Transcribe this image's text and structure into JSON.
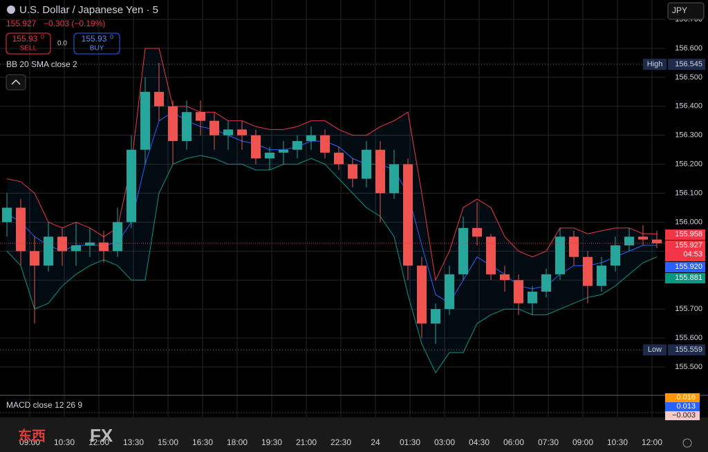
{
  "chart_data": {
    "type": "candlestick",
    "title": "U.S. Dollar / Japanese Yen · 5",
    "last_price": "155.927",
    "change": "−0.303 (−0.19%)",
    "sell": {
      "price": "155.93",
      "sup": "0",
      "label": "SELL"
    },
    "spread": "0.0",
    "buy": {
      "price": "155.93",
      "sup": "0",
      "label": "BUY"
    },
    "indicator": "BB 20 SMA close 2",
    "currency": "JPY",
    "macd_title": "MACD close 12 26 9",
    "macd_labels": [
      {
        "label": "0.016",
        "color": "#ff9800"
      },
      {
        "label": "0.013",
        "color": "#2962ff"
      },
      {
        "label": "−0.003",
        "color": "#f7c9c9"
      }
    ],
    "countdown": "04:53",
    "watermark": [
      "东西",
      "FX"
    ],
    "open": [
      156.0,
      156.05,
      155.9,
      155.85,
      155.95,
      155.9,
      155.92,
      155.93,
      155.9,
      156.0,
      156.25,
      156.45,
      156.4,
      156.28,
      156.38,
      156.35,
      156.3,
      156.32,
      156.3,
      156.22,
      156.24,
      156.25,
      156.28,
      156.3,
      156.24,
      156.2,
      156.15,
      156.25,
      156.1,
      156.2,
      155.85,
      155.65,
      155.7,
      155.82,
      155.98,
      155.95,
      155.82,
      155.8,
      155.72,
      155.76,
      155.82,
      155.95,
      155.88,
      155.78,
      155.85,
      155.92,
      155.95,
      155.94
    ],
    "high": [
      156.1,
      156.08,
      155.95,
      156.0,
      155.98,
      156.0,
      155.98,
      155.97,
      156.05,
      156.3,
      156.5,
      156.55,
      156.42,
      156.42,
      156.42,
      156.38,
      156.35,
      156.35,
      156.32,
      156.26,
      156.28,
      156.3,
      156.33,
      156.32,
      156.26,
      156.22,
      156.28,
      156.28,
      156.25,
      156.22,
      155.88,
      155.72,
      155.85,
      156.02,
      156.07,
      155.96,
      155.85,
      155.82,
      155.78,
      155.84,
      155.98,
      155.97,
      155.9,
      155.88,
      155.95,
      155.98,
      155.99,
      155.97
    ],
    "low": [
      155.95,
      155.85,
      155.65,
      155.83,
      155.85,
      155.85,
      155.88,
      155.86,
      155.88,
      155.98,
      156.2,
      156.35,
      156.2,
      156.25,
      156.3,
      156.25,
      156.25,
      156.25,
      156.2,
      156.18,
      156.2,
      156.22,
      156.25,
      156.22,
      156.18,
      156.12,
      156.12,
      156.0,
      156.08,
      155.8,
      155.6,
      155.58,
      155.68,
      155.8,
      155.92,
      155.8,
      155.76,
      155.68,
      155.68,
      155.74,
      155.8,
      155.85,
      155.72,
      155.76,
      155.83,
      155.9,
      155.92,
      155.91
    ],
    "close": [
      156.05,
      155.9,
      155.85,
      155.95,
      155.9,
      155.92,
      155.93,
      155.9,
      156.0,
      156.25,
      156.45,
      156.4,
      156.28,
      156.38,
      156.35,
      156.3,
      156.32,
      156.3,
      156.22,
      156.24,
      156.25,
      156.28,
      156.3,
      156.24,
      156.2,
      156.15,
      156.25,
      156.1,
      156.2,
      155.85,
      155.65,
      155.7,
      155.82,
      155.98,
      155.95,
      155.82,
      155.8,
      155.72,
      155.76,
      155.82,
      155.95,
      155.88,
      155.78,
      155.85,
      155.92,
      155.95,
      155.94,
      155.927
    ],
    "bands": [
      {
        "name": "upper",
        "color": "#f23645",
        "values": [
          156.15,
          156.14,
          156.1,
          156.0,
          155.98,
          156.0,
          155.98,
          155.95,
          155.98,
          156.2,
          156.6,
          156.6,
          156.4,
          156.4,
          156.38,
          156.38,
          156.35,
          156.35,
          156.33,
          156.32,
          156.32,
          156.33,
          156.35,
          156.35,
          156.32,
          156.3,
          156.3,
          156.33,
          156.35,
          156.38,
          156.1,
          155.8,
          155.9,
          156.05,
          156.08,
          156.05,
          155.95,
          155.9,
          155.88,
          155.9,
          155.98,
          155.98,
          155.96,
          155.97,
          155.98,
          155.98,
          155.96,
          155.96
        ]
      },
      {
        "name": "basis",
        "color": "#2962ff",
        "values": [
          156.03,
          156.0,
          155.95,
          155.92,
          155.9,
          155.92,
          155.92,
          155.92,
          155.93,
          156.0,
          156.2,
          156.35,
          156.38,
          156.35,
          156.33,
          156.32,
          156.3,
          156.28,
          156.27,
          156.25,
          156.25,
          156.26,
          156.28,
          156.28,
          156.26,
          156.22,
          156.2,
          156.2,
          156.18,
          156.1,
          155.92,
          155.75,
          155.72,
          155.8,
          155.88,
          155.85,
          155.82,
          155.78,
          155.77,
          155.78,
          155.82,
          155.85,
          155.85,
          155.86,
          155.88,
          155.9,
          155.92,
          155.92
        ]
      },
      {
        "name": "lower",
        "color": "#089981",
        "values": [
          155.9,
          155.85,
          155.7,
          155.72,
          155.78,
          155.82,
          155.85,
          155.87,
          155.85,
          155.8,
          155.8,
          156.1,
          156.2,
          156.22,
          156.23,
          156.22,
          156.2,
          156.2,
          156.18,
          156.18,
          156.2,
          156.2,
          156.22,
          156.2,
          156.15,
          156.1,
          156.05,
          156.02,
          155.95,
          155.75,
          155.58,
          155.48,
          155.55,
          155.55,
          155.65,
          155.68,
          155.7,
          155.7,
          155.68,
          155.68,
          155.7,
          155.72,
          155.74,
          155.75,
          155.78,
          155.82,
          155.86,
          155.88
        ]
      }
    ],
    "up_color": "#26a69a",
    "down_color": "#ef5350",
    "xlim": [
      -0.5,
      47.6
    ],
    "xticks": [
      {
        "value": 1.65,
        "label": "09:00"
      },
      {
        "value": 4.15,
        "label": "10:30"
      },
      {
        "value": 6.65,
        "label": "12:00"
      },
      {
        "value": 9.15,
        "label": "13:30"
      },
      {
        "value": 11.65,
        "label": "15:00"
      },
      {
        "value": 14.15,
        "label": "16:30"
      },
      {
        "value": 16.65,
        "label": "18:00"
      },
      {
        "value": 19.15,
        "label": "19:30"
      },
      {
        "value": 21.65,
        "label": "21:00"
      },
      {
        "value": 24.15,
        "label": "22:30"
      },
      {
        "value": 26.65,
        "label": "24"
      },
      {
        "value": 29.15,
        "label": "01:30"
      },
      {
        "value": 31.65,
        "label": "03:00"
      },
      {
        "value": 34.15,
        "label": "04:30"
      },
      {
        "value": 36.65,
        "label": "06:00"
      },
      {
        "value": 39.15,
        "label": "07:30"
      },
      {
        "value": 41.65,
        "label": "09:00"
      },
      {
        "value": 44.15,
        "label": "10:30"
      },
      {
        "value": 46.65,
        "label": "12:00"
      }
    ],
    "ylim": [
      155.407,
      156.767
    ],
    "yticks": [
      {
        "value": 155.5,
        "label": "155.500"
      },
      {
        "value": 155.6,
        "label": "155.600"
      },
      {
        "value": 155.7,
        "label": "155.700"
      },
      {
        "value": 155.8,
        "label": "155.800"
      },
      {
        "value": 155.9,
        "label": "155.900"
      },
      {
        "value": 156.0,
        "label": "156.000"
      },
      {
        "value": 156.1,
        "label": "156.100"
      },
      {
        "value": 156.2,
        "label": "156.200"
      },
      {
        "value": 156.3,
        "label": "156.300"
      },
      {
        "value": 156.4,
        "label": "156.400"
      },
      {
        "value": 156.5,
        "label": "156.500"
      },
      {
        "value": 156.6,
        "label": "156.600"
      },
      {
        "value": 156.7,
        "label": "156.700"
      }
    ],
    "grid": true,
    "levels": [
      {
        "name": "High",
        "value": 156.545
      },
      {
        "name": "Low",
        "value": 155.559
      }
    ],
    "price_labels": [
      {
        "value": 155.958,
        "label": "155.958",
        "color": "#f23645"
      },
      {
        "value": 155.927,
        "label": "155.927",
        "color": "#f23645"
      },
      {
        "value": 155.92,
        "label": "155.920",
        "color": "#2962ff"
      },
      {
        "value": 155.881,
        "label": "155.881",
        "color": "#089981"
      }
    ]
  }
}
